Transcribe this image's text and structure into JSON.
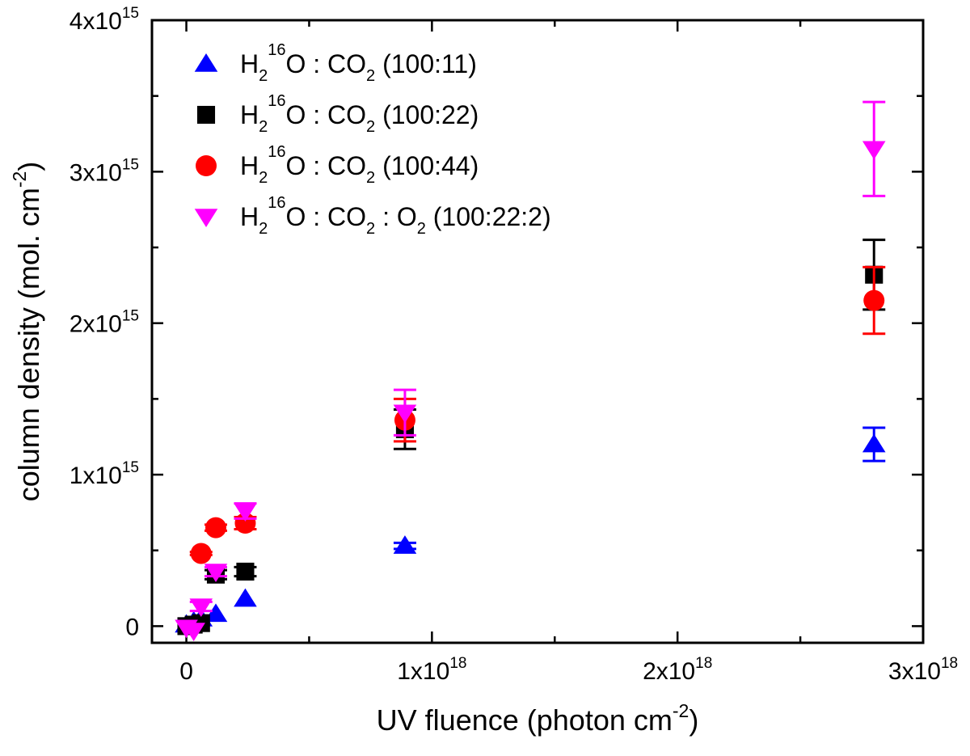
{
  "chart_data": {
    "type": "scatter",
    "title": "",
    "xlabel": "UV fluence (photon cm",
    "xlabel_sup": "-2",
    "xlabel_close": ")",
    "ylabel": "column density (mol. cm",
    "ylabel_sup": "-2",
    "ylabel_close": ")",
    "xlim": [
      -1.4e+17,
      3e+18
    ],
    "ylim": [
      -110000000000000.0,
      4000000000000000.0
    ],
    "x_ticks": [
      {
        "value": 0,
        "mant": "0",
        "exp": ""
      },
      {
        "value": 1e+18,
        "mant": "1x10",
        "exp": "18"
      },
      {
        "value": 2e+18,
        "mant": "2x10",
        "exp": "18"
      },
      {
        "value": 3e+18,
        "mant": "3x10",
        "exp": "18"
      }
    ],
    "y_ticks": [
      {
        "value": 0,
        "mant": "0",
        "exp": ""
      },
      {
        "value": 1000000000000000.0,
        "mant": "1x10",
        "exp": "15"
      },
      {
        "value": 2000000000000000.0,
        "mant": "2x10",
        "exp": "15"
      },
      {
        "value": 3000000000000000.0,
        "mant": "3x10",
        "exp": "15"
      },
      {
        "value": 4000000000000000.0,
        "mant": "4x10",
        "exp": "15"
      }
    ],
    "legend_position": "top-left",
    "series": [
      {
        "name": "H2 16O : CO2 (100:11)",
        "color": "#0000ff",
        "marker": "triangle-up",
        "label_parts": [
          [
            "H",
            "n"
          ],
          [
            "2",
            "sub"
          ],
          [
            "16",
            "sup"
          ],
          [
            "O : CO",
            "n"
          ],
          [
            "2",
            "sub"
          ],
          [
            " (100:11)",
            "n"
          ]
        ],
        "points": [
          {
            "x": 0,
            "y": 10000000000000.0,
            "err": 0
          },
          {
            "x": 3e+16,
            "y": 30000000000000.0,
            "err": 0
          },
          {
            "x": 6e+16,
            "y": 50000000000000.0,
            "err": 0
          },
          {
            "x": 1.2e+17,
            "y": 80000000000000.0,
            "err": 0
          },
          {
            "x": 2.4e+17,
            "y": 180000000000000.0,
            "err": 0
          },
          {
            "x": 8.9e+17,
            "y": 530000000000000.0,
            "err": 20000000000000.0
          },
          {
            "x": 2.8e+18,
            "y": 1200000000000000.0,
            "err": 110000000000000.0
          }
        ]
      },
      {
        "name": "H2 16O : CO2 (100:22)",
        "color": "#000000",
        "marker": "square",
        "label_parts": [
          [
            "H",
            "n"
          ],
          [
            "2",
            "sub"
          ],
          [
            "16",
            "sup"
          ],
          [
            "O : CO",
            "n"
          ],
          [
            "2",
            "sub"
          ],
          [
            " (100:22)",
            "n"
          ]
        ],
        "points": [
          {
            "x": 0,
            "y": 0,
            "err": 0
          },
          {
            "x": 3e+16,
            "y": 10000000000000.0,
            "err": 0
          },
          {
            "x": 6e+16,
            "y": 20000000000000.0,
            "err": 0
          },
          {
            "x": 1.2e+17,
            "y": 340000000000000.0,
            "err": 30000000000000.0
          },
          {
            "x": 2.4e+17,
            "y": 360000000000000.0,
            "err": 30000000000000.0
          },
          {
            "x": 8.9e+17,
            "y": 1300000000000000.0,
            "err": 130000000000000.0
          },
          {
            "x": 2.8e+18,
            "y": 2320000000000000.0,
            "err": 230000000000000.0
          }
        ]
      },
      {
        "name": "H2 16O : CO2 (100:44)",
        "color": "#ff0000",
        "marker": "circle",
        "label_parts": [
          [
            "H",
            "n"
          ],
          [
            "2",
            "sub"
          ],
          [
            "16",
            "sup"
          ],
          [
            "O : CO",
            "n"
          ],
          [
            "2",
            "sub"
          ],
          [
            " (100:44)",
            "n"
          ]
        ],
        "points": [
          {
            "x": 6e+16,
            "y": 480000000000000.0,
            "err": 10000000000000.0
          },
          {
            "x": 1.2e+17,
            "y": 650000000000000.0,
            "err": 20000000000000.0
          },
          {
            "x": 2.4e+17,
            "y": 680000000000000.0,
            "err": 40000000000000.0
          },
          {
            "x": 8.9e+17,
            "y": 1360000000000000.0,
            "err": 140000000000000.0
          },
          {
            "x": 2.8e+18,
            "y": 2150000000000000.0,
            "err": 220000000000000.0
          }
        ]
      },
      {
        "name": "H2 16O : CO2 : O2 (100:22:2)",
        "color": "#ff00ff",
        "marker": "triangle-down",
        "label_parts": [
          [
            "H",
            "n"
          ],
          [
            "2",
            "sub"
          ],
          [
            "16",
            "sup"
          ],
          [
            "O : CO",
            "n"
          ],
          [
            "2",
            "sub"
          ],
          [
            " : O",
            "n"
          ],
          [
            "2",
            "sub"
          ],
          [
            " (100:22:2)",
            "n"
          ]
        ],
        "points": [
          {
            "x": 0,
            "y": -10000000000000.0,
            "err": 0
          },
          {
            "x": 3e+16,
            "y": -30000000000000.0,
            "err": 0
          },
          {
            "x": 6e+16,
            "y": 130000000000000.0,
            "err": 30000000000000.0
          },
          {
            "x": 1.2e+17,
            "y": 360000000000000.0,
            "err": 30000000000000.0
          },
          {
            "x": 2.4e+17,
            "y": 760000000000000.0,
            "err": 50000000000000.0
          },
          {
            "x": 8.9e+17,
            "y": 1410000000000000.0,
            "err": 150000000000000.0
          },
          {
            "x": 2.8e+18,
            "y": 3150000000000000.0,
            "err": 310000000000000.0
          }
        ]
      }
    ]
  }
}
